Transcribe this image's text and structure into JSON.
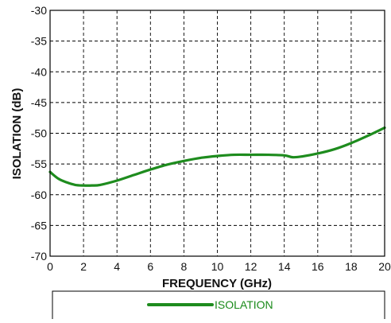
{
  "chart_data": {
    "type": "line",
    "xlabel": "FREQUENCY (GHz)",
    "ylabel": "ISOLATION (dB)",
    "xlim": [
      0,
      20
    ],
    "ylim": [
      -70,
      -30
    ],
    "x_ticks": [
      0,
      2,
      4,
      6,
      8,
      10,
      12,
      14,
      16,
      18,
      20
    ],
    "y_ticks": [
      -30,
      -35,
      -40,
      -45,
      -50,
      -55,
      -60,
      -65,
      -70
    ],
    "grid": true,
    "grid_style": "dashed",
    "legend_position": "bottom",
    "series": [
      {
        "name": "ISOLATION",
        "color": "#1e8c1e",
        "x": [
          0,
          0.5,
          1,
          1.5,
          2,
          2.5,
          3,
          4,
          5,
          6,
          7,
          8,
          9,
          10,
          11,
          12,
          13,
          14,
          14.5,
          15,
          16,
          17,
          18,
          19,
          20
        ],
        "y": [
          -56.3,
          -57.4,
          -58.0,
          -58.4,
          -58.5,
          -58.5,
          -58.4,
          -57.7,
          -56.8,
          -55.9,
          -55.1,
          -54.5,
          -54.0,
          -53.7,
          -53.5,
          -53.5,
          -53.5,
          -53.6,
          -53.9,
          -53.8,
          -53.3,
          -52.6,
          -51.6,
          -50.4,
          -49.1
        ]
      }
    ]
  }
}
